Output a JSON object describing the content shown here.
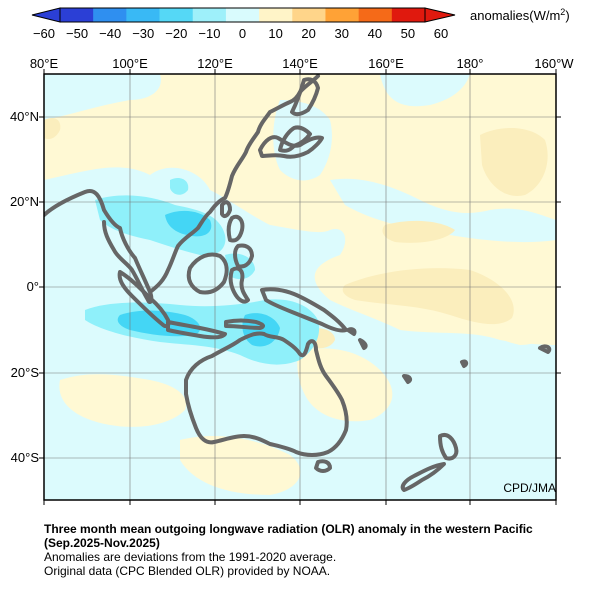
{
  "colorbar": {
    "ticks": [
      "−60",
      "−50",
      "−40",
      "−30",
      "−20",
      "−10",
      "0",
      "10",
      "20",
      "30",
      "40",
      "50",
      "60"
    ],
    "colors": [
      "#2b3fd6",
      "#2f8ff0",
      "#39b9f5",
      "#55d8f6",
      "#9ef0fa",
      "#d9fbfd",
      "#fff4c8",
      "#ffd58a",
      "#ffa236",
      "#f56a18",
      "#e0190e"
    ],
    "unit_label_prefix": "anomalies(W/m",
    "unit_label_superscript": "2",
    "unit_label_suffix": ")"
  },
  "axes": {
    "lon_labels": [
      "80°E",
      "100°E",
      "120°E",
      "140°E",
      "160°E",
      "180°",
      "160°W"
    ],
    "lat_labels": [
      "40°N",
      "20°N",
      "0°",
      "20°S",
      "40°S"
    ]
  },
  "map": {
    "land_outline_color": "#666666",
    "background_color": "#fff9d4",
    "negative_anomaly_light": "#dcfbfd",
    "negative_anomaly_medium": "#8ff0fa",
    "negative_anomaly_strong": "#44d6f5"
  },
  "credit": "CPD/JMA",
  "caption": {
    "title_line1": "Three month mean outgoing longwave radiation (OLR) anomaly in the western Pacific",
    "title_line2": "(Sep.2025-Nov.2025)",
    "note1": "Anomalies are deviations from the 1991-2020 average.",
    "note2": "Original data (CPC Blended OLR) provided by NOAA."
  }
}
